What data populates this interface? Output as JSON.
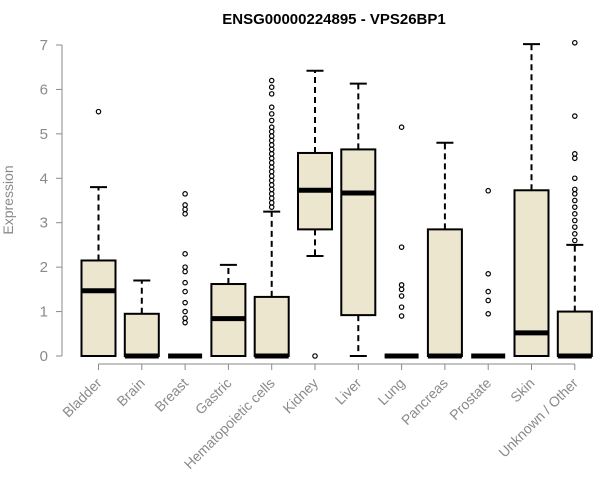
{
  "chart_data": {
    "type": "boxplot",
    "title": "ENSG00000224895 - VPS26BP1",
    "xlabel": "",
    "ylabel": "Expression",
    "ylim": [
      0,
      7
    ],
    "yticks": [
      0,
      1,
      2,
      3,
      4,
      5,
      6,
      7
    ],
    "box_color": "#ede6cf",
    "categories": [
      "Bladder",
      "Brain",
      "Breast",
      "Gastric",
      "Hematopoietic cells",
      "Kidney",
      "Liver",
      "Lung",
      "Pancreas",
      "Prostate",
      "Skin",
      "Unknown / Other"
    ],
    "boxes": [
      {
        "q1": 0.0,
        "median": 1.47,
        "q3": 2.15,
        "whisker_low": 0.0,
        "whisker_high": 3.8,
        "outliers": [
          5.5
        ]
      },
      {
        "q1": 0.0,
        "median": 0.0,
        "q3": 0.95,
        "whisker_low": 0.0,
        "whisker_high": 1.7,
        "outliers": []
      },
      {
        "q1": 0.0,
        "median": 0.0,
        "q3": 0.0,
        "whisker_low": 0.0,
        "whisker_high": 0.0,
        "outliers": [
          0.75,
          0.85,
          1.0,
          1.2,
          1.45,
          1.65,
          1.9,
          2.0,
          2.3,
          3.2,
          3.3,
          3.4,
          3.65
        ]
      },
      {
        "q1": 0.0,
        "median": 0.84,
        "q3": 1.62,
        "whisker_low": 0.0,
        "whisker_high": 2.05,
        "outliers": []
      },
      {
        "q1": 0.0,
        "median": 0.0,
        "q3": 1.33,
        "whisker_low": 0.0,
        "whisker_high": 3.25,
        "outliers": [
          3.35,
          3.45,
          3.55,
          3.65,
          3.75,
          3.85,
          3.95,
          4.05,
          4.15,
          4.25,
          4.35,
          4.45,
          4.55,
          4.65,
          4.75,
          4.85,
          4.95,
          5.05,
          5.15,
          5.3,
          5.45,
          5.6,
          5.9,
          6.05,
          6.2
        ]
      },
      {
        "q1": 2.85,
        "median": 3.73,
        "q3": 4.57,
        "whisker_low": 2.25,
        "whisker_high": 6.42,
        "outliers": [
          0.0
        ]
      },
      {
        "q1": 0.92,
        "median": 3.67,
        "q3": 4.65,
        "whisker_low": 0.0,
        "whisker_high": 6.13,
        "outliers": []
      },
      {
        "q1": 0.0,
        "median": 0.0,
        "q3": 0.0,
        "whisker_low": 0.0,
        "whisker_high": 0.0,
        "outliers": [
          0.9,
          1.1,
          1.35,
          1.5,
          1.6,
          2.45,
          5.15
        ]
      },
      {
        "q1": 0.0,
        "median": 0.0,
        "q3": 2.85,
        "whisker_low": 0.0,
        "whisker_high": 4.8,
        "outliers": []
      },
      {
        "q1": 0.0,
        "median": 0.0,
        "q3": 0.0,
        "whisker_low": 0.0,
        "whisker_high": 0.0,
        "outliers": [
          0.95,
          1.25,
          1.45,
          1.85,
          3.72
        ]
      },
      {
        "q1": 0.0,
        "median": 0.52,
        "q3": 3.73,
        "whisker_low": 0.0,
        "whisker_high": 7.02,
        "outliers": []
      },
      {
        "q1": 0.0,
        "median": 0.0,
        "q3": 1.0,
        "whisker_low": 0.0,
        "whisker_high": 2.5,
        "outliers": [
          2.6,
          2.75,
          2.9,
          3.05,
          3.2,
          3.35,
          3.5,
          3.65,
          3.75,
          4.0,
          4.45,
          4.55,
          5.4,
          7.05
        ]
      }
    ]
  }
}
